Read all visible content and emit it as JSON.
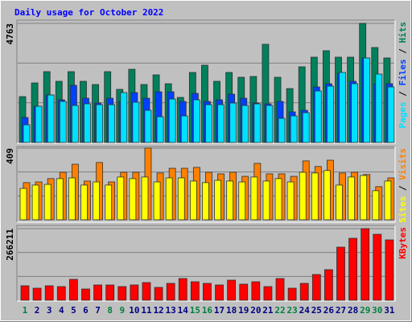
{
  "title": "Daily usage for October 2022",
  "legend_separator": " / ",
  "chart_data": [
    {
      "type": "bar",
      "ylim": [
        0,
        4763
      ],
      "yticks": [
        4763
      ],
      "series": [
        {
          "name": "Hits",
          "color": "#00805c",
          "values": [
            1834,
            2381,
            2832,
            2446,
            2832,
            2446,
            2317,
            2832,
            2124,
            2928,
            2317,
            2703,
            2349,
            1802,
            2800,
            3089,
            2446,
            2800,
            2607,
            2639,
            3926,
            2607,
            2156,
            3025,
            3411,
            3669,
            3411,
            3411,
            4763,
            3797,
            3379
          ]
        },
        {
          "name": "Files",
          "color": "#0040ff",
          "values": [
            998,
            1448,
            1899,
            1706,
            2285,
            1770,
            1577,
            1770,
            1641,
            1995,
            1770,
            2027,
            2027,
            1641,
            1963,
            1641,
            1706,
            1931,
            1770,
            1577,
            1545,
            1641,
            1223,
            1287,
            2220,
            2349,
            2767,
            2446,
            3379,
            2349,
            2349
          ]
        },
        {
          "name": "Pages",
          "color": "#00e0ff",
          "values": [
            708,
            1448,
            1899,
            1641,
            1480,
            1545,
            1512,
            1512,
            1995,
            1609,
            1287,
            1030,
            1738,
            1062,
            1706,
            1512,
            1512,
            1577,
            1480,
            1545,
            1480,
            965,
            1062,
            1191,
            2060,
            2253,
            2800,
            2349,
            3379,
            2735,
            2220
          ]
        }
      ]
    },
    {
      "type": "bar",
      "ylim": [
        0,
        409
      ],
      "yticks": [
        409
      ],
      "series": [
        {
          "name": "Visits",
          "color": "#ff8000",
          "values": [
            212,
            216,
            235,
            271,
            317,
            221,
            327,
            216,
            271,
            271,
            409,
            267,
            294,
            294,
            299,
            271,
            262,
            271,
            248,
            322,
            262,
            262,
            248,
            336,
            304,
            340,
            267,
            271,
            258,
            189,
            239
          ]
        },
        {
          "name": "Sites",
          "color": "#ffff00",
          "values": [
            179,
            198,
            202,
            235,
            239,
            198,
            216,
            198,
            244,
            235,
            244,
            216,
            239,
            239,
            221,
            212,
            225,
            221,
            216,
            244,
            221,
            235,
            216,
            271,
            267,
            281,
            198,
            244,
            253,
            166,
            221
          ]
        }
      ]
    },
    {
      "type": "bar",
      "ylim": [
        0,
        266211
      ],
      "yticks": [
        266211
      ],
      "categories": [
        "1",
        "2",
        "3",
        "4",
        "5",
        "6",
        "7",
        "8",
        "9",
        "10",
        "11",
        "12",
        "13",
        "14",
        "15",
        "16",
        "17",
        "18",
        "19",
        "20",
        "21",
        "22",
        "23",
        "24",
        "25",
        "26",
        "27",
        "28",
        "29",
        "30",
        "31"
      ],
      "category_colors": [
        "#008040",
        "#000080",
        "#000080",
        "#000080",
        "#000080",
        "#000080",
        "#000080",
        "#008040",
        "#008040",
        "#000080",
        "#000080",
        "#000080",
        "#000080",
        "#000080",
        "#008040",
        "#008040",
        "#000080",
        "#000080",
        "#000080",
        "#000080",
        "#000080",
        "#008040",
        "#008040",
        "#000080",
        "#000080",
        "#000080",
        "#000080",
        "#000080",
        "#008040",
        "#008040",
        "#000080"
      ],
      "series": [
        {
          "name": "KBytes",
          "color": "#ff0000",
          "values": [
            53838,
            44865,
            53838,
            50847,
            77766,
            41874,
            56829,
            56829,
            50847,
            56829,
            65802,
            47856,
            62811,
            80757,
            68793,
            62811,
            56829,
            74775,
            59820,
            68793,
            50847,
            80757,
            44865,
            62811,
            95712,
            113658,
            197406,
            230307,
            266211,
            245262,
            224325
          ]
        }
      ]
    }
  ]
}
